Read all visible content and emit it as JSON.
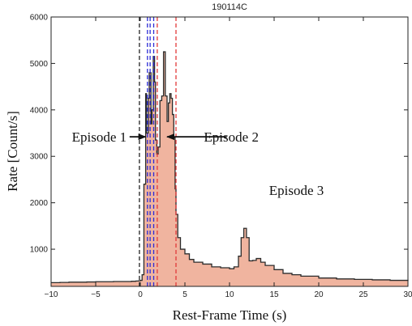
{
  "chart_data": {
    "type": "area",
    "title": "190114C",
    "xlabel": "Rest-Frame Time (s)",
    "ylabel": "Rate [Count/s]",
    "xlim": [
      -10,
      30
    ],
    "ylim": [
      200,
      6000
    ],
    "x_ticks": [
      -10,
      -5,
      0,
      5,
      10,
      15,
      20,
      25,
      30
    ],
    "y_ticks": [
      1000,
      2000,
      3000,
      4000,
      5000,
      6000
    ],
    "series": [
      {
        "fill_color": "#f0b49f",
        "line_color": "#2b2b2b",
        "x": [
          -10,
          -9,
          -8,
          -7,
          -6,
          -5,
          -4,
          -3,
          -2,
          -1,
          -0.5,
          -0.2,
          0,
          0.2,
          0.4,
          0.6,
          0.7,
          0.9,
          1.0,
          1.2,
          1.3,
          1.45,
          1.6,
          1.7,
          1.85,
          2.0,
          2.2,
          2.4,
          2.6,
          2.8,
          3.0,
          3.15,
          3.3,
          3.45,
          3.6,
          3.75,
          3.9,
          4.0,
          4.2,
          4.5,
          5,
          5.5,
          6,
          7,
          8,
          9,
          10,
          10.5,
          11,
          11.3,
          11.6,
          11.9,
          12.2,
          12.6,
          13,
          13.5,
          14,
          15,
          16,
          17,
          18,
          20,
          22,
          24,
          26,
          28,
          30
        ],
        "y": [
          280,
          285,
          290,
          290,
          295,
          300,
          300,
          305,
          305,
          310,
          315,
          320,
          330,
          450,
          2400,
          4350,
          3500,
          4250,
          4800,
          3700,
          4000,
          5150,
          4600,
          3350,
          3050,
          3200,
          4200,
          4300,
          5250,
          4300,
          3750,
          4150,
          4350,
          4250,
          3900,
          3400,
          2300,
          1750,
          1250,
          1000,
          900,
          780,
          720,
          680,
          620,
          600,
          580,
          620,
          850,
          1250,
          1450,
          1250,
          750,
          760,
          800,
          720,
          650,
          560,
          480,
          450,
          420,
          380,
          360,
          350,
          340,
          330,
          320
        ]
      }
    ],
    "vlines": [
      {
        "x": -0.1,
        "color": "#222222",
        "style": "dashed"
      },
      {
        "x": 0.8,
        "color": "#2b2bd6",
        "style": "dashed"
      },
      {
        "x": 1.1,
        "color": "#2b2bd6",
        "style": "dashed"
      },
      {
        "x": 1.5,
        "color": "#2b2bd6",
        "style": "dashed"
      },
      {
        "x": 1.9,
        "color": "#e23a3a",
        "style": "dashed"
      },
      {
        "x": 4.0,
        "color": "#e23a3a",
        "style": "dashed"
      }
    ],
    "annotations": [
      {
        "text": "Episode 1",
        "x": -4.6,
        "y": 3420,
        "arrow_to_x": 0.6,
        "arrow_to_y": 3420,
        "arrow_from_x": -1.2
      },
      {
        "text": "Episode 2",
        "x": 10.2,
        "y": 3420,
        "arrow_to_x": 3.0,
        "arrow_to_y": 3420,
        "arrow_from_x": 9.7
      },
      {
        "text": "Episode 3",
        "x": 17.5,
        "y": 2270
      }
    ],
    "grid": false,
    "legend": null
  }
}
